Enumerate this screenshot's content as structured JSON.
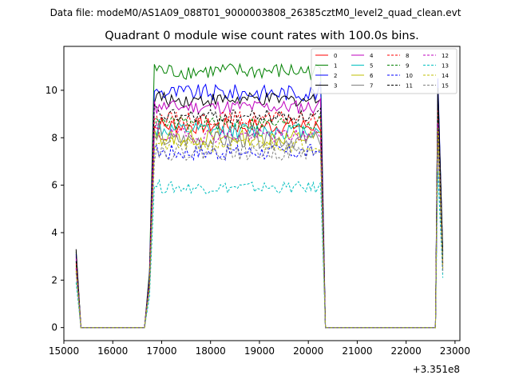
{
  "header": {
    "file_line": "Data file: modeM0/AS1A09_088T01_9000003808_26385cztM0_level2_quad_clean.evt"
  },
  "chart_data": {
    "type": "line",
    "title": "Quadrant 0 module wise count rates with 100.0s bins.",
    "xlabel": "",
    "ylabel": "",
    "x_offset_label": "+3.351e8",
    "xlim": [
      15000,
      23100
    ],
    "ylim": [
      -0.55,
      11.85
    ],
    "x_ticks": [
      15000,
      16000,
      17000,
      18000,
      19000,
      20000,
      21000,
      22000,
      23000
    ],
    "x_tick_labels": [
      "15000",
      "16000",
      "17000",
      "18000",
      "19000",
      "20000",
      "21000",
      "22000",
      "23000"
    ],
    "y_ticks": [
      0,
      2,
      4,
      6,
      8,
      10
    ],
    "y_tick_labels": [
      "0",
      "2",
      "4",
      "6",
      "8",
      "10"
    ],
    "grid": false,
    "legend_placement": "top-right",
    "legend_columns": 4,
    "segments": [
      {
        "start": 15250,
        "end": 15350,
        "kind": "decay"
      },
      {
        "start": 15350,
        "end": 16650,
        "kind": "zero"
      },
      {
        "start": 16650,
        "end": 16850,
        "kind": "rise"
      },
      {
        "start": 16850,
        "end": 20250,
        "kind": "active"
      },
      {
        "start": 20250,
        "end": 20350,
        "kind": "drop"
      },
      {
        "start": 20350,
        "end": 22600,
        "kind": "zero"
      },
      {
        "start": 22600,
        "end": 22750,
        "kind": "spike"
      }
    ],
    "series": [
      {
        "name": "0",
        "color": "#ff0000",
        "dash": "solid",
        "level": 8.5,
        "noise": 0.35,
        "start": 3.0,
        "spike": 9.5,
        "end": 2.8
      },
      {
        "name": "1",
        "color": "#008000",
        "dash": "solid",
        "level": 10.8,
        "noise": 0.35,
        "start": 3.2,
        "spike": 10.3,
        "end": 3.0
      },
      {
        "name": "2",
        "color": "#0000ff",
        "dash": "solid",
        "level": 9.9,
        "noise": 0.35,
        "start": 3.1,
        "spike": 10.5,
        "end": 3.1
      },
      {
        "name": "3",
        "color": "#000000",
        "dash": "solid",
        "level": 9.6,
        "noise": 0.3,
        "start": 3.3,
        "spike": 10.1,
        "end": 3.2
      },
      {
        "name": "4",
        "color": "#bf00bf",
        "dash": "solid",
        "level": 9.3,
        "noise": 0.3,
        "start": 2.9,
        "spike": 9.0,
        "end": 2.7
      },
      {
        "name": "5",
        "color": "#00bfbf",
        "dash": "solid",
        "level": 8.3,
        "noise": 0.35,
        "start": 2.8,
        "spike": 8.8,
        "end": 2.9
      },
      {
        "name": "6",
        "color": "#bfbf00",
        "dash": "solid",
        "level": 8.0,
        "noise": 0.35,
        "start": 2.6,
        "spike": 8.5,
        "end": 2.5
      },
      {
        "name": "7",
        "color": "#808080",
        "dash": "solid",
        "level": 7.9,
        "noise": 0.35,
        "start": 2.4,
        "spike": 8.2,
        "end": 2.4
      },
      {
        "name": "8",
        "color": "#ff0000",
        "dash": "dashed",
        "level": 8.8,
        "noise": 0.3,
        "start": 2.7,
        "spike": 9.2,
        "end": 2.6
      },
      {
        "name": "9",
        "color": "#008000",
        "dash": "dashed",
        "level": 8.6,
        "noise": 0.3,
        "start": 2.5,
        "spike": 9.1,
        "end": 2.6
      },
      {
        "name": "10",
        "color": "#0000ff",
        "dash": "dashed",
        "level": 7.4,
        "noise": 0.35,
        "start": 2.3,
        "spike": 7.9,
        "end": 2.4
      },
      {
        "name": "11",
        "color": "#000000",
        "dash": "dashed",
        "level": 8.9,
        "noise": 0.3,
        "start": 2.8,
        "spike": 9.6,
        "end": 2.7
      },
      {
        "name": "12",
        "color": "#bf00bf",
        "dash": "dashed",
        "level": 8.1,
        "noise": 0.3,
        "start": 2.5,
        "spike": 8.6,
        "end": 2.5
      },
      {
        "name": "13",
        "color": "#00bfbf",
        "dash": "dashed",
        "level": 5.9,
        "noise": 0.25,
        "start": 1.9,
        "spike": 6.6,
        "end": 2.1
      },
      {
        "name": "14",
        "color": "#bfbf00",
        "dash": "dashed",
        "level": 7.7,
        "noise": 0.3,
        "start": 2.4,
        "spike": 8.4,
        "end": 2.5
      },
      {
        "name": "15",
        "color": "#808080",
        "dash": "dashed",
        "level": 7.4,
        "noise": 0.35,
        "start": 2.3,
        "spike": 8.0,
        "end": 2.3
      }
    ]
  }
}
